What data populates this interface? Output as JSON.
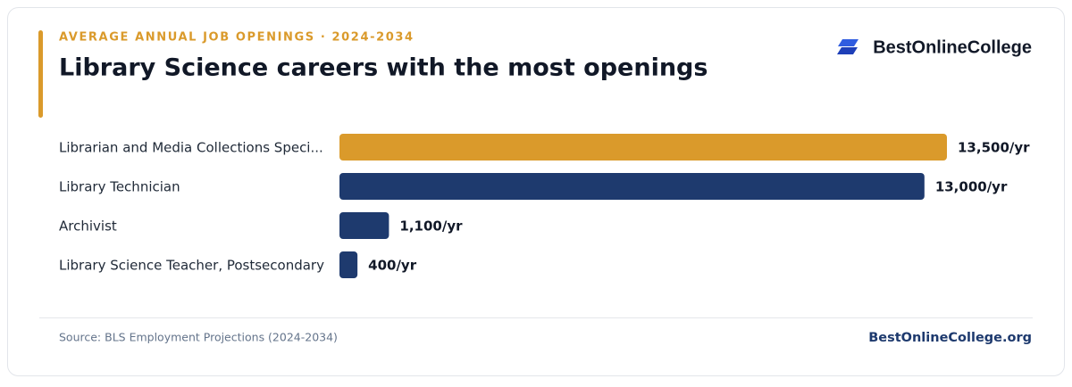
{
  "chart_data": {
    "type": "bar",
    "orientation": "horizontal",
    "subtitle": "AVERAGE ANNUAL JOB OPENINGS · 2024-2034",
    "title": "Library Science careers with the most openings",
    "brand": "BestOnlineCollege",
    "categories": [
      "Librarian and Media Collections Speci...",
      "Library Technician",
      "Archivist",
      "Library Science Teacher, Postsecondary"
    ],
    "values": [
      13500,
      13000,
      1100,
      400
    ],
    "value_labels": [
      "13,500/yr",
      "13,000/yr",
      "1,100/yr",
      "400/yr"
    ],
    "colors": [
      "#da9a2b",
      "#1e3a6e",
      "#1e3a6e",
      "#1e3a6e"
    ],
    "source": "Source: BLS Employment Projections (2024-2034)",
    "footer_brand": "BestOnlineCollege.org"
  }
}
